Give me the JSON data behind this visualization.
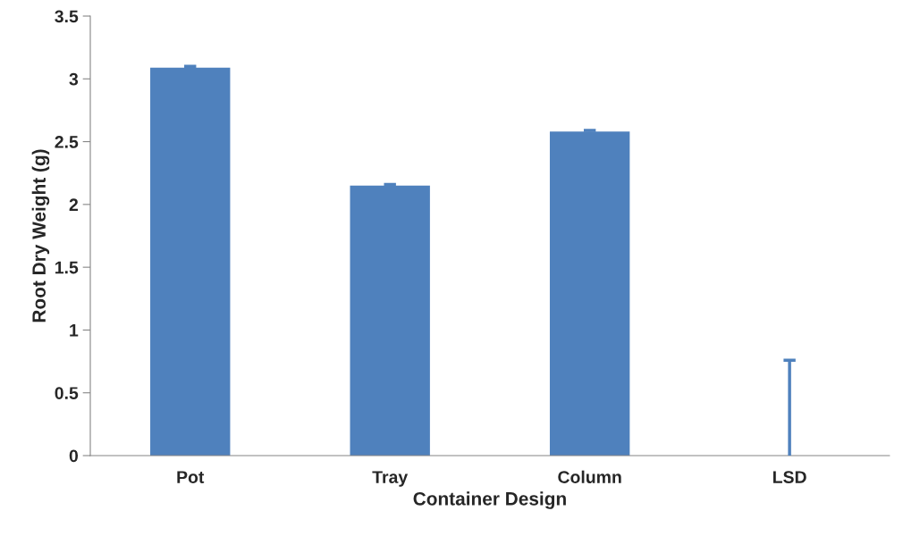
{
  "chart_data": {
    "type": "bar",
    "xlabel": "Container Design",
    "ylabel": "Root Dry Weight (g)",
    "categories": [
      "Pot",
      "Tray",
      "Column",
      "LSD"
    ],
    "values": [
      3.09,
      2.15,
      2.58,
      0
    ],
    "errors": [
      [
        3.09,
        3.1
      ],
      [
        2.15,
        2.16
      ],
      [
        2.58,
        2.59
      ],
      [
        0,
        0.76
      ]
    ],
    "color": "#4f81bd",
    "ylim": [
      0,
      3.5
    ],
    "yticks": [
      0,
      0.5,
      1,
      1.5,
      2,
      2.5,
      3,
      3.5
    ],
    "grid": false
  }
}
